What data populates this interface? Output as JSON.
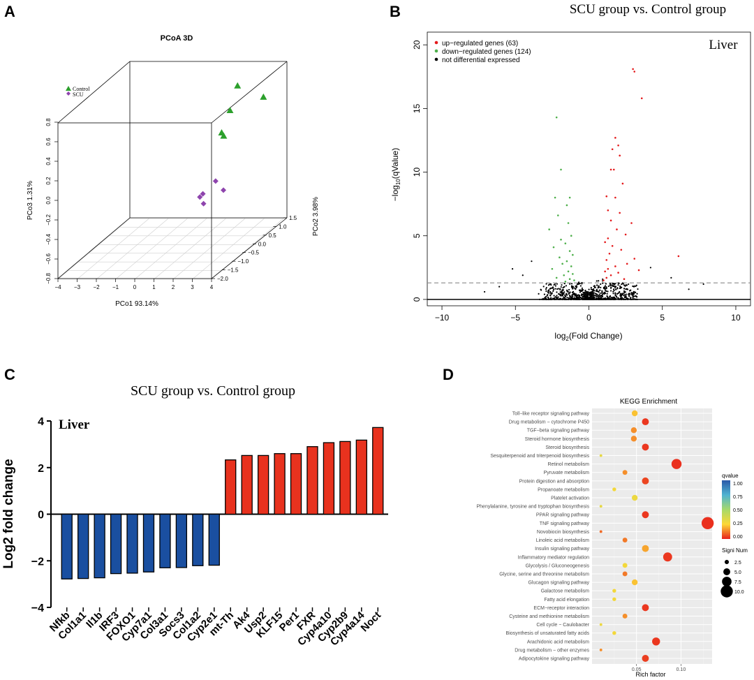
{
  "panels": {
    "a": "A",
    "b": "B",
    "c": "C",
    "d": "D"
  },
  "chart_data": [
    {
      "id": "pcoa",
      "type": "scatter",
      "title": "PCoA 3D",
      "xlabel": "PCo1 93.14%",
      "ylabel": "PCo2 3.98%",
      "zlabel": "PCo3 1.31%",
      "legend": [
        {
          "name": "Control",
          "marker": "triangle",
          "color": "#2ca02c"
        },
        {
          "name": "SCU",
          "marker": "diamond",
          "color": "#8e44ad"
        }
      ],
      "x_ticks": [
        "-4",
        "-3",
        "-2",
        "-1",
        "0",
        "1",
        "2",
        "3",
        "4"
      ],
      "y_ticks": [
        "-2.0",
        "-1.5",
        "-1.0",
        "-0.5",
        "0.0",
        "0.5",
        "1.0",
        "1.5"
      ],
      "z_ticks": [
        "-0.8",
        "-0.6",
        "-0.4",
        "-0.2",
        "0.0",
        "0.2",
        "0.4",
        "0.6",
        "0.8"
      ],
      "series": [
        {
          "name": "Control",
          "points": [
            [
              3.0,
              0.2,
              0.79
            ],
            [
              2.5,
              0.3,
              0.52
            ],
            [
              3.6,
              0.9,
              0.55
            ],
            [
              2.6,
              -0.2,
              0.38
            ],
            [
              2.6,
              -0.1,
              0.33
            ]
          ]
        },
        {
          "name": "SCU",
          "points": [
            [
              2.5,
              -0.4,
              -0.08
            ],
            [
              2.8,
              -1.3,
              -0.05
            ],
            [
              2.3,
              -0.8,
              -0.24
            ],
            [
              2.0,
              -0.7,
              -0.19
            ],
            [
              2.8,
              -0.3,
              -0.19
            ]
          ]
        }
      ]
    },
    {
      "id": "volcano",
      "type": "scatter",
      "title": "SCU group vs. Control group",
      "annotation": "Liver",
      "xlabel": "log2(Fold Change)",
      "ylabel": "-log10(qValue)",
      "xlim": [
        -11,
        11
      ],
      "ylim": [
        -0.5,
        21
      ],
      "x_ticks": [
        -10,
        -5,
        0,
        5,
        10
      ],
      "y_ticks": [
        0,
        5,
        10,
        15,
        20
      ],
      "threshold_y": 1.3,
      "legend": [
        {
          "name": "up−regulated genes (63)",
          "color": "#e41a1c"
        },
        {
          "name": "down−regulated genes (124)",
          "color": "#4daf4a"
        },
        {
          "name": "not differential expressed",
          "color": "#000000"
        }
      ],
      "series": [
        {
          "name": "up",
          "color": "#e41a1c",
          "points": [
            [
              3.0,
              18.1
            ],
            [
              3.1,
              17.9
            ],
            [
              3.6,
              15.8
            ],
            [
              1.8,
              12.7
            ],
            [
              2.0,
              12.1
            ],
            [
              1.6,
              11.8
            ],
            [
              2.1,
              11.3
            ],
            [
              1.5,
              10.2
            ],
            [
              1.7,
              10.2
            ],
            [
              2.3,
              9.1
            ],
            [
              1.2,
              8.1
            ],
            [
              1.8,
              8.0
            ],
            [
              1.3,
              7.0
            ],
            [
              2.1,
              6.8
            ],
            [
              1.5,
              6.2
            ],
            [
              2.9,
              6.0
            ],
            [
              1.9,
              5.5
            ],
            [
              2.5,
              5.1
            ],
            [
              1.3,
              4.8
            ],
            [
              1.1,
              4.5
            ],
            [
              6.1,
              3.4
            ],
            [
              1.6,
              4.2
            ],
            [
              2.2,
              3.9
            ],
            [
              1.4,
              3.6
            ],
            [
              3.1,
              3.2
            ],
            [
              1.2,
              3.1
            ],
            [
              2.6,
              2.8
            ],
            [
              1.8,
              2.6
            ],
            [
              1.3,
              2.4
            ],
            [
              3.4,
              2.3
            ],
            [
              1.1,
              2.2
            ],
            [
              2.0,
              2.1
            ],
            [
              1.5,
              1.9
            ],
            [
              1.2,
              1.7
            ],
            [
              2.4,
              1.6
            ],
            [
              1.0,
              1.5
            ]
          ]
        },
        {
          "name": "down",
          "color": "#4daf4a",
          "points": [
            [
              -2.2,
              14.3
            ],
            [
              -1.9,
              10.2
            ],
            [
              -2.3,
              8.0
            ],
            [
              -1.3,
              8.0
            ],
            [
              -1.5,
              7.4
            ],
            [
              -2.1,
              6.6
            ],
            [
              -1.4,
              6.0
            ],
            [
              -2.7,
              5.5
            ],
            [
              -1.2,
              5.0
            ],
            [
              -1.9,
              4.7
            ],
            [
              -1.6,
              4.4
            ],
            [
              -2.4,
              4.1
            ],
            [
              -1.3,
              3.8
            ],
            [
              -1.1,
              3.5
            ],
            [
              -2.0,
              3.3
            ],
            [
              -1.5,
              3.0
            ],
            [
              -1.8,
              2.8
            ],
            [
              -1.2,
              2.6
            ],
            [
              -2.5,
              2.4
            ],
            [
              -1.4,
              2.2
            ],
            [
              -1.1,
              2.0
            ],
            [
              -1.7,
              1.9
            ],
            [
              -2.2,
              1.7
            ],
            [
              -1.3,
              1.6
            ],
            [
              -1.0,
              1.5
            ],
            [
              -1.6,
              1.4
            ]
          ]
        }
      ]
    },
    {
      "id": "bars",
      "type": "bar",
      "title": "SCU group vs. Control group",
      "annotation": "Liver",
      "ylabel": "Log2 fold change",
      "ylim": [
        -4,
        4
      ],
      "y_ticks": [
        -4,
        -2,
        0,
        2,
        4
      ],
      "categories": [
        "Nfkb",
        "Col1a1",
        "Il1b",
        "IRF3",
        "FOXO1",
        "Cyp7a1",
        "Col3a1",
        "Socs3",
        "Col1a2",
        "Cyp2e1",
        "mt-Th",
        "Ak4",
        "Usp2",
        "KLF15",
        "Per1",
        "FXR",
        "Cyp4a10",
        "Cyp2b9",
        "Cyp4a14",
        "Noct"
      ],
      "values": [
        -2.78,
        -2.76,
        -2.73,
        -2.55,
        -2.53,
        -2.48,
        -2.3,
        -2.29,
        -2.21,
        -2.19,
        2.33,
        2.52,
        2.52,
        2.6,
        2.6,
        2.9,
        3.07,
        3.12,
        3.18,
        3.72
      ],
      "colors": {
        "negative": "#1a4fa0",
        "positive": "#e8321e"
      }
    },
    {
      "id": "kegg",
      "type": "scatter",
      "title": "KEGG Enrichment",
      "xlabel": "Rich factor",
      "x_ticks": [
        0.05,
        0.1
      ],
      "xlim": [
        0.0,
        0.135
      ],
      "legend_color_title": "qvalue",
      "color_ticks": [
        "1.00",
        "0.75",
        "0.50",
        "0.25",
        "0.00"
      ],
      "legend_size_title": "Signi Num",
      "size_ticks": [
        "2.5",
        "5.0",
        "7.5",
        "10.0"
      ],
      "pathways": [
        {
          "name": "Toll−like receptor signaling pathway",
          "rich": 0.048,
          "num": 4,
          "q": 0.22
        },
        {
          "name": "Drug metabolism − cytochrome P450",
          "rich": 0.06,
          "num": 5,
          "q": 0.03
        },
        {
          "name": "TGF−beta signaling pathway",
          "rich": 0.047,
          "num": 4,
          "q": 0.15
        },
        {
          "name": "Steroid hormone biosynthesis",
          "rich": 0.047,
          "num": 4,
          "q": 0.15
        },
        {
          "name": "Steroid biosynthesis",
          "rich": 0.06,
          "num": 5,
          "q": 0.03
        },
        {
          "name": "Sesquiterpenoid and triterpenoid biosynthesis",
          "rich": 0.01,
          "num": 1,
          "q": 0.32
        },
        {
          "name": "Retinol metabolism",
          "rich": 0.095,
          "num": 8,
          "q": 0.02
        },
        {
          "name": "Pyruvate metabolism",
          "rich": 0.037,
          "num": 3,
          "q": 0.15
        },
        {
          "name": "Protein digestion and absorption",
          "rich": 0.06,
          "num": 5,
          "q": 0.05
        },
        {
          "name": "Propanoate metabolism",
          "rich": 0.025,
          "num": 2,
          "q": 0.28
        },
        {
          "name": "Platelet activation",
          "rich": 0.048,
          "num": 4,
          "q": 0.3
        },
        {
          "name": "Phenylalanine, tyrosine and tryptophan biosynthesis",
          "rich": 0.01,
          "num": 1,
          "q": 0.32
        },
        {
          "name": "PPAR signaling pathway",
          "rich": 0.06,
          "num": 5,
          "q": 0.03
        },
        {
          "name": "TNF signaling pathway",
          "rich": 0.13,
          "num": 10,
          "q": 0.02
        },
        {
          "name": "Novobiocin biosynthesis",
          "rich": 0.01,
          "num": 1,
          "q": 0.1
        },
        {
          "name": "Linoleic acid metabolism",
          "rich": 0.037,
          "num": 3,
          "q": 0.12
        },
        {
          "name": "Insulin signaling pathway",
          "rich": 0.06,
          "num": 5,
          "q": 0.18
        },
        {
          "name": "Inflammatory mediator regulation",
          "rich": 0.085,
          "num": 7,
          "q": 0.03
        },
        {
          "name": "Glycolysis / Gluconeogenesis",
          "rich": 0.037,
          "num": 3,
          "q": 0.28
        },
        {
          "name": "Glycine, serine and threonine metabolism",
          "rich": 0.037,
          "num": 3,
          "q": 0.12
        },
        {
          "name": "Glucagon signaling pathway",
          "rich": 0.048,
          "num": 4,
          "q": 0.22
        },
        {
          "name": "Galactose metabolism",
          "rich": 0.025,
          "num": 2,
          "q": 0.28
        },
        {
          "name": "Fatty acid elongation",
          "rich": 0.025,
          "num": 2,
          "q": 0.28
        },
        {
          "name": "ECM−receptor interaction",
          "rich": 0.06,
          "num": 5,
          "q": 0.03
        },
        {
          "name": "Cysteine and methionine metabolism",
          "rich": 0.037,
          "num": 3,
          "q": 0.15
        },
        {
          "name": "Cell cycle − Caulobacter",
          "rich": 0.01,
          "num": 1,
          "q": 0.3
        },
        {
          "name": "Biosynthesis of unsaturated fatty acids",
          "rich": 0.025,
          "num": 2,
          "q": 0.28
        },
        {
          "name": "Arachidonic acid metabolism",
          "rich": 0.072,
          "num": 6,
          "q": 0.03
        },
        {
          "name": "Drug metabolism − other enzymes",
          "rich": 0.01,
          "num": 1,
          "q": 0.15
        },
        {
          "name": "Adipocytokine signaling pathway",
          "rich": 0.06,
          "num": 5,
          "q": 0.04
        }
      ]
    }
  ]
}
